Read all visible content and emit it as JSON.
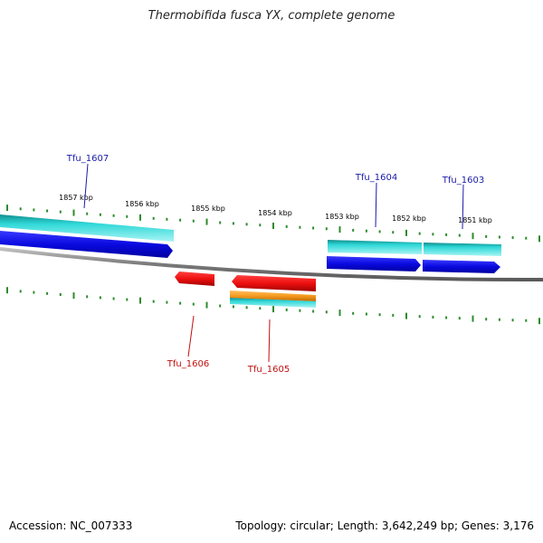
{
  "title": "Thermobifida fusca YX, complete genome",
  "footer": {
    "accession": "Accession: NC_007333",
    "summary": "Topology: circular; Length: 3,642,249 bp; Genes: 3,176"
  },
  "colors": {
    "background": "#ffffff",
    "backbone": "#8a8a8a",
    "tick": "#2e8b2e",
    "forward_gene": "#1010e0",
    "forward_cds": "#20c8c8",
    "reverse_gene": "#e81010",
    "orange_feature": "#f59a20",
    "forward_label": "#1a1aa8",
    "reverse_label": "#c01010"
  },
  "kbp_labels": [
    "1857 kbp",
    "1856 kbp",
    "1855 kbp",
    "1854 kbp",
    "1853 kbp",
    "1852 kbp",
    "1851 kbp"
  ],
  "gene_labels": {
    "forward": [
      "Tfu_1607",
      "Tfu_1604",
      "Tfu_1603"
    ],
    "reverse": [
      "Tfu_1606",
      "Tfu_1605"
    ]
  }
}
